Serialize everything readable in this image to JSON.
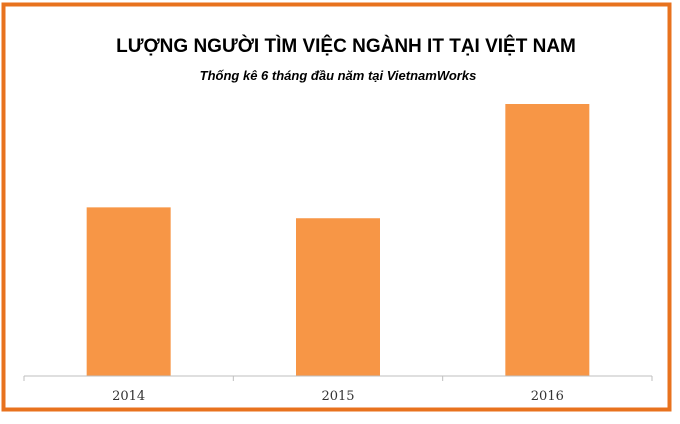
{
  "colors": {
    "frame": "#E8721E",
    "bar": "#F79646",
    "axis": "#BFBFBF",
    "title": "#000000",
    "tick_label": "#333333"
  },
  "chart_data": {
    "type": "bar",
    "title": "LƯỢNG NGƯỜI TÌM VIỆC NGÀNH IT TẠI VIỆT NAM",
    "subtitle": "Thống kê 6 tháng đầu năm tại VietnamWorks",
    "categories": [
      "2014",
      "2015",
      "2016"
    ],
    "values": [
      62,
      58,
      100
    ],
    "ylim": [
      0,
      100
    ],
    "grid": false,
    "legend": "none"
  }
}
